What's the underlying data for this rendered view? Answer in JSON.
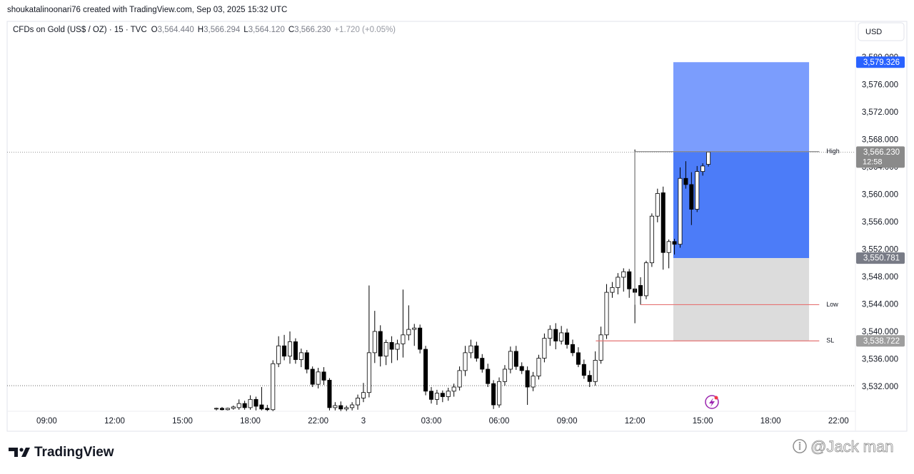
{
  "header": {
    "credit": "shoukatalinoonari76 created with TradingView.com, Sep 03, 2025 15:32 UTC",
    "symbol": "CFDs on Gold (US$ / OZ) · 15 · TVC",
    "ohlc": [
      {
        "key": "O",
        "value": "3,564.440"
      },
      {
        "key": "H",
        "value": "3,566.294"
      },
      {
        "key": "L",
        "value": "3,564.120"
      },
      {
        "key": "C",
        "value": "3,566.230"
      }
    ],
    "change": "+1.720 (+0.05%)",
    "currency": "USD"
  },
  "footer": {
    "brand": "TradingView",
    "watermark": "@Jack man"
  },
  "chart_data": {
    "type": "candlestick",
    "x": [
      30,
      31,
      32,
      33,
      34,
      35,
      36,
      37,
      38,
      39,
      40,
      41,
      42,
      43,
      44,
      45,
      46,
      47,
      48,
      49,
      50,
      51,
      52,
      53,
      54,
      55,
      56,
      57,
      58,
      59,
      60,
      61,
      62,
      63,
      64,
      65,
      66,
      67,
      68,
      69,
      70,
      71,
      72,
      73,
      74,
      75,
      76,
      77,
      78,
      79,
      80,
      81,
      82,
      83,
      84,
      85,
      86,
      87,
      88,
      89,
      90,
      91,
      92,
      93,
      94,
      95,
      96,
      97,
      98,
      99,
      100,
      101,
      102,
      103,
      104,
      105,
      106,
      107,
      108,
      109,
      110,
      111,
      112,
      113,
      114,
      115,
      116,
      117
    ],
    "open": [
      3528.8,
      3528.9,
      3528.7,
      3528.9,
      3529.0,
      3529.6,
      3529.0,
      3530.2,
      3529.4,
      3528.9,
      3528.7,
      3535.4,
      3538.0,
      3536.5,
      3538.6,
      3536.0,
      3537.0,
      3534.6,
      3532.4,
      3534.2,
      3533.0,
      3529.0,
      3529.3,
      3528.8,
      3529.0,
      3529.4,
      3530.4,
      3531.2,
      3537.0,
      3540.1,
      3536.5,
      3538.5,
      3537.5,
      3538.3,
      3539.6,
      3540.4,
      3540.6,
      3537.5,
      3531.4,
      3530.2,
      3531.1,
      3530.6,
      3531.4,
      3532.0,
      3534.4,
      3537.0,
      3538.0,
      3536.2,
      3534.6,
      3532.5,
      3529.4,
      3532.8,
      3534.6,
      3537.2,
      3535.0,
      3534.4,
      3532.0,
      3533.6,
      3536.2,
      3539.1,
      3540.4,
      3538.7,
      3539.9,
      3538.2,
      3537.0,
      3535.3,
      3533.7,
      3532.8,
      3535.9,
      3539.6,
      3545.8,
      3546.5,
      3548.0,
      3548.8,
      3546.3,
      3546.8,
      3545.3,
      3550.1,
      3556.9,
      3560.3,
      3551.6,
      3553.2,
      3552.8,
      3562.4,
      3561.5,
      3557.9,
      3563.4,
      3564.44
    ],
    "high": [
      3529.0,
      3529.1,
      3529.0,
      3529.3,
      3530.2,
      3530.0,
      3530.8,
      3530.6,
      3532.0,
      3529.4,
      3535.9,
      3539.4,
      3539.6,
      3540.1,
      3539.1,
      3537.6,
      3537.4,
      3535.0,
      3534.8,
      3534.9,
      3533.3,
      3529.8,
      3529.9,
      3529.3,
      3529.8,
      3530.9,
      3532.6,
      3546.8,
      3543.1,
      3541.0,
      3538.9,
      3539.4,
      3538.9,
      3546.2,
      3543.9,
      3541.2,
      3541.1,
      3538.0,
      3532.0,
      3531.6,
      3531.5,
      3531.9,
      3532.5,
      3535.0,
      3538.0,
      3538.9,
      3538.6,
      3536.8,
      3535.4,
      3533.0,
      3533.4,
      3535.2,
      3537.9,
      3538.0,
      3535.6,
      3535.0,
      3534.2,
      3536.7,
      3539.8,
      3541.0,
      3541.3,
      3540.9,
      3540.5,
      3538.9,
      3537.8,
      3536.0,
      3534.4,
      3537.2,
      3540.8,
      3547.0,
      3547.3,
      3548.6,
      3549.3,
      3549.2,
      3566.6,
      3548.0,
      3550.4,
      3557.3,
      3560.9,
      3561.2,
      3553.5,
      3553.6,
      3564.0,
      3564.9,
      3563.3,
      3564.2,
      3564.6,
      3566.294
    ],
    "low": [
      3528.6,
      3528.6,
      3528.6,
      3528.7,
      3528.7,
      3528.7,
      3528.7,
      3528.6,
      3528.6,
      3528.5,
      3528.5,
      3534.9,
      3535.9,
      3535.4,
      3535.4,
      3534.9,
      3534.0,
      3532.0,
      3531.8,
      3532.3,
      3528.6,
      3528.6,
      3528.5,
      3528.5,
      3528.6,
      3528.7,
      3529.8,
      3530.5,
      3535.5,
      3535.0,
      3535.2,
      3535.5,
      3535.9,
      3536.3,
      3538.8,
      3538.0,
      3536.9,
      3530.8,
      3529.6,
      3529.4,
      3529.8,
      3530.0,
      3530.6,
      3531.5,
      3533.6,
      3536.2,
      3535.7,
      3534.1,
      3532.0,
      3528.8,
      3529.0,
      3532.2,
      3534.0,
      3534.5,
      3533.9,
      3529.4,
      3531.4,
      3533.1,
      3535.6,
      3538.0,
      3537.5,
      3538.2,
      3537.6,
      3536.5,
      3534.9,
      3533.2,
      3532.0,
      3532.2,
      3535.4,
      3539.0,
      3545.0,
      3545.5,
      3545.9,
      3545.0,
      3541.3,
      3544.0,
      3544.8,
      3549.5,
      3556.0,
      3549.1,
      3549.3,
      3551.3,
      3552.3,
      3560.9,
      3555.6,
      3557.5,
      3562.8,
      3564.12
    ],
    "close": [
      3528.9,
      3528.7,
      3528.9,
      3529.1,
      3529.6,
      3529.0,
      3530.2,
      3529.2,
      3528.8,
      3528.7,
      3535.4,
      3538.0,
      3536.5,
      3538.6,
      3536.0,
      3537.0,
      3534.6,
      3532.4,
      3534.2,
      3533.0,
      3529.0,
      3529.3,
      3528.8,
      3529.0,
      3529.4,
      3530.4,
      3531.2,
      3537.0,
      3540.1,
      3536.5,
      3538.5,
      3537.5,
      3538.3,
      3539.6,
      3540.4,
      3540.6,
      3537.5,
      3531.4,
      3530.2,
      3531.1,
      3530.6,
      3531.4,
      3532.0,
      3534.4,
      3537.0,
      3538.0,
      3536.2,
      3534.6,
      3532.5,
      3529.4,
      3532.8,
      3534.6,
      3537.2,
      3535.0,
      3534.4,
      3532.0,
      3533.6,
      3536.2,
      3539.1,
      3540.4,
      3538.7,
      3539.9,
      3538.2,
      3537.0,
      3535.3,
      3533.7,
      3532.8,
      3535.9,
      3539.6,
      3545.8,
      3546.5,
      3548.0,
      3548.8,
      3546.3,
      3545.8,
      3545.3,
      3550.1,
      3556.9,
      3560.2,
      3551.6,
      3553.2,
      3552.8,
      3562.4,
      3561.5,
      3557.9,
      3563.4,
      3564.2,
      3566.23
    ],
    "up_color": "#ffffff",
    "down_color": "#000000",
    "wick_color": "#000000",
    "xlim": [
      -7,
      143
    ],
    "xticks": [
      {
        "value": 0,
        "label": "09:00"
      },
      {
        "value": 12,
        "label": "12:00"
      },
      {
        "value": 24,
        "label": "15:00"
      },
      {
        "value": 36,
        "label": "18:00"
      },
      {
        "value": 48,
        "label": "22:00"
      },
      {
        "value": 56,
        "label": "3"
      },
      {
        "value": 68,
        "label": "03:00"
      },
      {
        "value": 80,
        "label": "06:00"
      },
      {
        "value": 92,
        "label": "09:00"
      },
      {
        "value": 104,
        "label": "12:00"
      },
      {
        "value": 116,
        "label": "15:00"
      },
      {
        "value": 128,
        "label": "18:00"
      },
      {
        "value": 140,
        "label": "22:00"
      }
    ],
    "ylim": [
      3528.47,
      3585.27
    ],
    "yticks": [
      {
        "value": 3532,
        "label": "3,532.000"
      },
      {
        "value": 3536,
        "label": "3,536.000"
      },
      {
        "value": 3540,
        "label": "3,540.000"
      },
      {
        "value": 3544,
        "label": "3,544.000"
      },
      {
        "value": 3548,
        "label": "3,548.000"
      },
      {
        "value": 3552,
        "label": "3,552.000"
      },
      {
        "value": 3556,
        "label": "3,556.000"
      },
      {
        "value": 3560,
        "label": "3,560.000"
      },
      {
        "value": 3564,
        "label": "3,564.000"
      },
      {
        "value": 3568,
        "label": "3,568.000"
      },
      {
        "value": 3572,
        "label": "3,572.000"
      },
      {
        "value": 3576,
        "label": "3,576.000"
      },
      {
        "value": 3580,
        "label": "3,580.000"
      }
    ],
    "grid": false,
    "prev_close": 3532.2,
    "last_price": {
      "value": 3566.23,
      "value_label": "3,566.230",
      "countdown": "12:58"
    },
    "position": {
      "x_range": [
        110.8,
        134.8
      ],
      "target": {
        "value": 3579.326,
        "value_label": "3,579.326",
        "color": "#2962ff"
      },
      "entry": {
        "value": 3550.781,
        "value_label": "3,550.781",
        "color": "#787b86"
      },
      "stop": {
        "value": 3538.722,
        "value_label": "3,538.722",
        "color": "#9e9e9e"
      }
    },
    "levels": [
      {
        "label": "High",
        "value": 3566.294,
        "x_range": [
          104,
          136.6
        ],
        "color": "#888888"
      },
      {
        "label": "Low",
        "value": 3544.0,
        "x_range": [
          105,
          136.6
        ],
        "color": "#e57373"
      },
      {
        "label": "SL",
        "value": 3538.722,
        "x_range": [
          97.1,
          136.6
        ],
        "color": "#e57373"
      }
    ]
  }
}
